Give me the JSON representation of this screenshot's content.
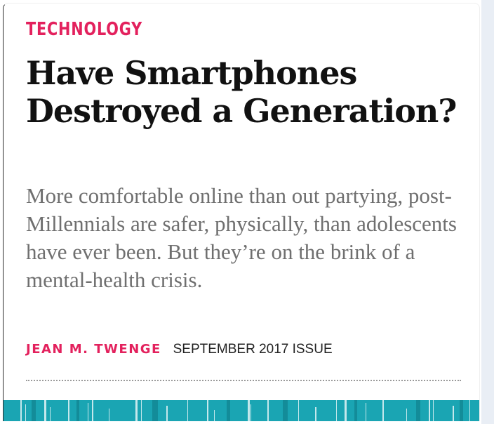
{
  "article": {
    "section": "TECHNOLOGY",
    "headline": "Have Smartphones Destroyed a Generation?",
    "dek": "More comfortable online than out partying, post-Millennials are safer, physically, than adolescents have ever been. But they’re on the brink of a mental-health crisis.",
    "author": "JEAN M. TWENGE",
    "issue": "SEPTEMBER 2017 ISSUE"
  },
  "colors": {
    "accent": "#e3215d",
    "headline": "#111111",
    "dek": "#6f6f6f",
    "strip": "#1aa5b3"
  }
}
